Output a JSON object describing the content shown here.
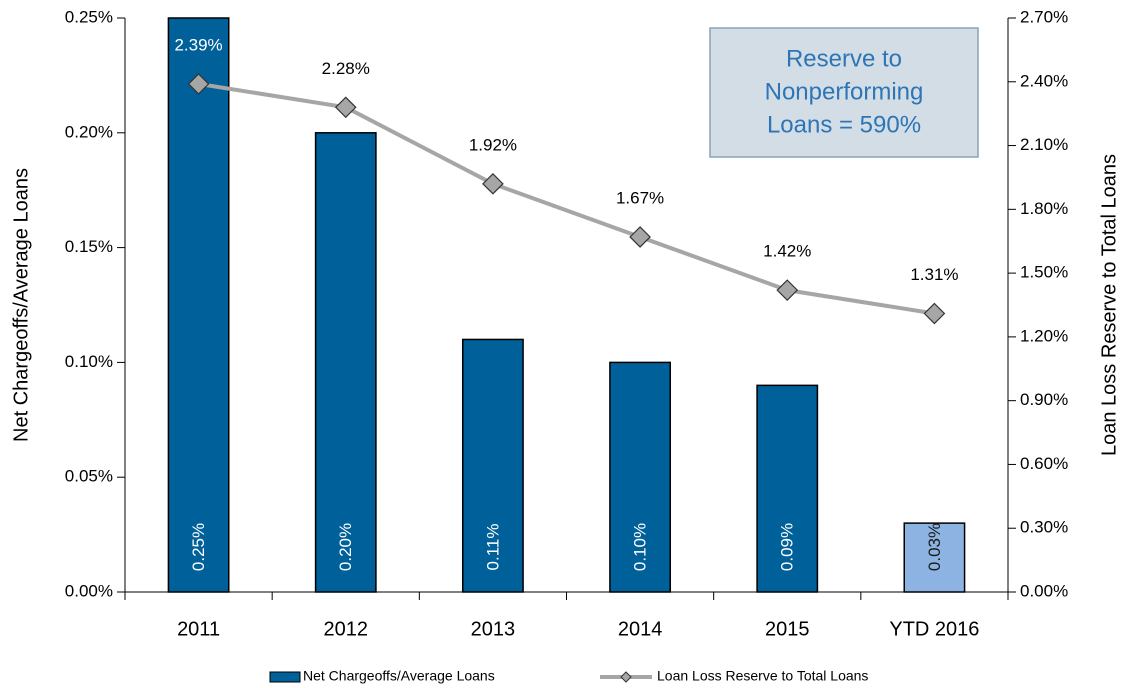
{
  "chart_data": {
    "type": "bar_line",
    "categories": [
      "2011",
      "2012",
      "2013",
      "2014",
      "2015",
      "YTD 2016"
    ],
    "series": [
      {
        "name": "Net Chargeoffs/Average Loans",
        "type": "bar",
        "color": "#00609a",
        "colors": [
          "#00609a",
          "#00609a",
          "#00609a",
          "#00609a",
          "#00609a",
          "#8db3e2"
        ],
        "values": [
          0.25,
          0.2,
          0.11,
          0.1,
          0.09,
          0.03
        ],
        "value_labels": [
          "0.25%",
          "0.20%",
          "0.11%",
          "0.10%",
          "0.09%",
          "0.03%"
        ]
      },
      {
        "name": "Loan Loss Reserve to Total Loans",
        "type": "line",
        "axis": "y2",
        "color": "#a6a6a6",
        "values": [
          2.39,
          2.28,
          1.92,
          1.67,
          1.42,
          1.31
        ],
        "value_labels": [
          "2.39%",
          "2.28%",
          "1.92%",
          "1.67%",
          "1.42%",
          "1.31%"
        ]
      }
    ],
    "ylabel": "Net Chargeoffs/Average Loans",
    "y2label": "Loan Loss Reserve to Total Loans",
    "ylim": [
      0,
      0.25
    ],
    "yticks": [
      {
        "value": 0,
        "label": "0.00%"
      },
      {
        "value": 0.05,
        "label": "0.05%"
      },
      {
        "value": 0.1,
        "label": "0.10%"
      },
      {
        "value": 0.15,
        "label": "0.15%"
      },
      {
        "value": 0.2,
        "label": "0.20%"
      },
      {
        "value": 0.25,
        "label": "0.25%"
      }
    ],
    "y2lim": [
      0,
      2.7
    ],
    "y2ticks": [
      {
        "value": 0,
        "label": "0.00%"
      },
      {
        "value": 0.3,
        "label": "0.30%"
      },
      {
        "value": 0.6,
        "label": "0.60%"
      },
      {
        "value": 0.9,
        "label": "0.90%"
      },
      {
        "value": 1.2,
        "label": "1.20%"
      },
      {
        "value": 1.5,
        "label": "1.50%"
      },
      {
        "value": 1.8,
        "label": "1.80%"
      },
      {
        "value": 2.1,
        "label": "2.10%"
      },
      {
        "value": 2.4,
        "label": "2.40%"
      },
      {
        "value": 2.7,
        "label": "2.70%"
      }
    ],
    "annotation": [
      "Reserve to",
      "Nonperforming",
      "Loans = 590%"
    ],
    "grid": false,
    "legend": "bottom"
  }
}
